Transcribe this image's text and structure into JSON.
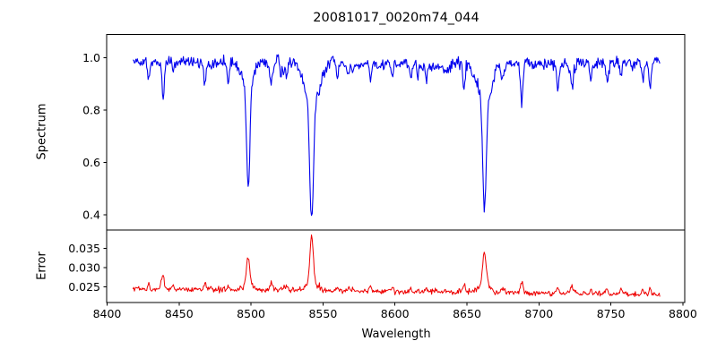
{
  "chart_data": {
    "type": "line",
    "title": "20081017_0020m74_044",
    "xlabel": "Wavelength",
    "xlim": [
      8399.7,
      8801.3
    ],
    "x_ticks": [
      {
        "v": 8400,
        "label": "8400"
      },
      {
        "v": 8450,
        "label": "8450"
      },
      {
        "v": 8500,
        "label": "8500"
      },
      {
        "v": 8550,
        "label": "8550"
      },
      {
        "v": 8600,
        "label": "8600"
      },
      {
        "v": 8650,
        "label": "8650"
      },
      {
        "v": 8700,
        "label": "8700"
      },
      {
        "v": 8750,
        "label": "8750"
      },
      {
        "v": 8800,
        "label": "8800"
      }
    ],
    "x_range_data": [
      8418,
      8784
    ],
    "sample_step": 0.5,
    "grid": false,
    "legend": "none",
    "panels": [
      {
        "name": "spectrum",
        "ylabel": "Spectrum",
        "color": "#0000ee",
        "ylim": [
          0.342,
          1.089
        ],
        "y_ticks": [
          {
            "v": 0.4,
            "label": "0.4"
          },
          {
            "v": 0.6,
            "label": "0.6"
          },
          {
            "v": 0.8,
            "label": "0.8"
          },
          {
            "v": 1.0,
            "label": "1.0"
          }
        ]
      },
      {
        "name": "error",
        "ylabel": "Error",
        "color": "#ee0000",
        "ylim": [
          0.0209,
          0.0397
        ],
        "y_ticks": [
          {
            "v": 0.025,
            "label": "0.025"
          },
          {
            "v": 0.03,
            "label": "0.030"
          },
          {
            "v": 0.035,
            "label": "0.035"
          }
        ]
      }
    ],
    "continuum_level": 0.982,
    "absorption_lines": {
      "major": [
        {
          "center": 8498.0,
          "core_depth": 0.33,
          "core_sigma": 1.1,
          "wing_depth": 0.1,
          "wing_sigma": 3.5,
          "min_flux": 0.55
        },
        {
          "center": 8542.1,
          "core_depth": 0.455,
          "core_sigma": 1.3,
          "wing_depth": 0.155,
          "wing_sigma": 5.0,
          "min_flux": 0.37
        },
        {
          "center": 8662.1,
          "core_depth": 0.42,
          "core_sigma": 1.2,
          "wing_depth": 0.135,
          "wing_sigma": 4.5,
          "min_flux": 0.42
        }
      ],
      "minor": [
        [
          8429,
          0.075,
          0.7
        ],
        [
          8439,
          0.125,
          0.8
        ],
        [
          8446,
          0.04,
          0.6
        ],
        [
          8468,
          0.08,
          0.7
        ],
        [
          8484,
          0.04,
          0.6
        ],
        [
          8514,
          0.09,
          0.8
        ],
        [
          8525,
          0.04,
          0.6
        ],
        [
          8560,
          0.05,
          0.7
        ],
        [
          8583,
          0.055,
          0.7
        ],
        [
          8598,
          0.05,
          0.7
        ],
        [
          8611,
          0.045,
          0.6
        ],
        [
          8622,
          0.04,
          0.6
        ],
        [
          8648,
          0.09,
          0.8
        ],
        [
          8674,
          0.05,
          0.7
        ],
        [
          8688,
          0.14,
          0.9
        ],
        [
          8713,
          0.05,
          0.7
        ],
        [
          8723,
          0.09,
          0.8
        ],
        [
          8736,
          0.06,
          0.7
        ],
        [
          8747,
          0.05,
          0.6
        ],
        [
          8757,
          0.06,
          0.7
        ],
        [
          8772,
          0.05,
          0.7
        ]
      ]
    },
    "error_baseline": [
      0.0245,
      0.023
    ],
    "error_peaks": [
      {
        "center": 8498.0,
        "amp": 0.0062,
        "sigma": 1.0,
        "wing_amp": 0.002
      },
      {
        "center": 8542.1,
        "amp": 0.0115,
        "sigma": 1.1,
        "wing_amp": 0.0028
      },
      {
        "center": 8662.1,
        "amp": 0.0082,
        "sigma": 1.25,
        "wing_amp": 0.0021
      },
      {
        "center": 8438.0,
        "amp": 0.002,
        "sigma": 0.9,
        "wing_amp": 0.0
      }
    ],
    "noise": {
      "seed": 20081017,
      "spectrum_std": 0.011,
      "error_std": 0.00035,
      "micro_dip_count": 48
    }
  }
}
